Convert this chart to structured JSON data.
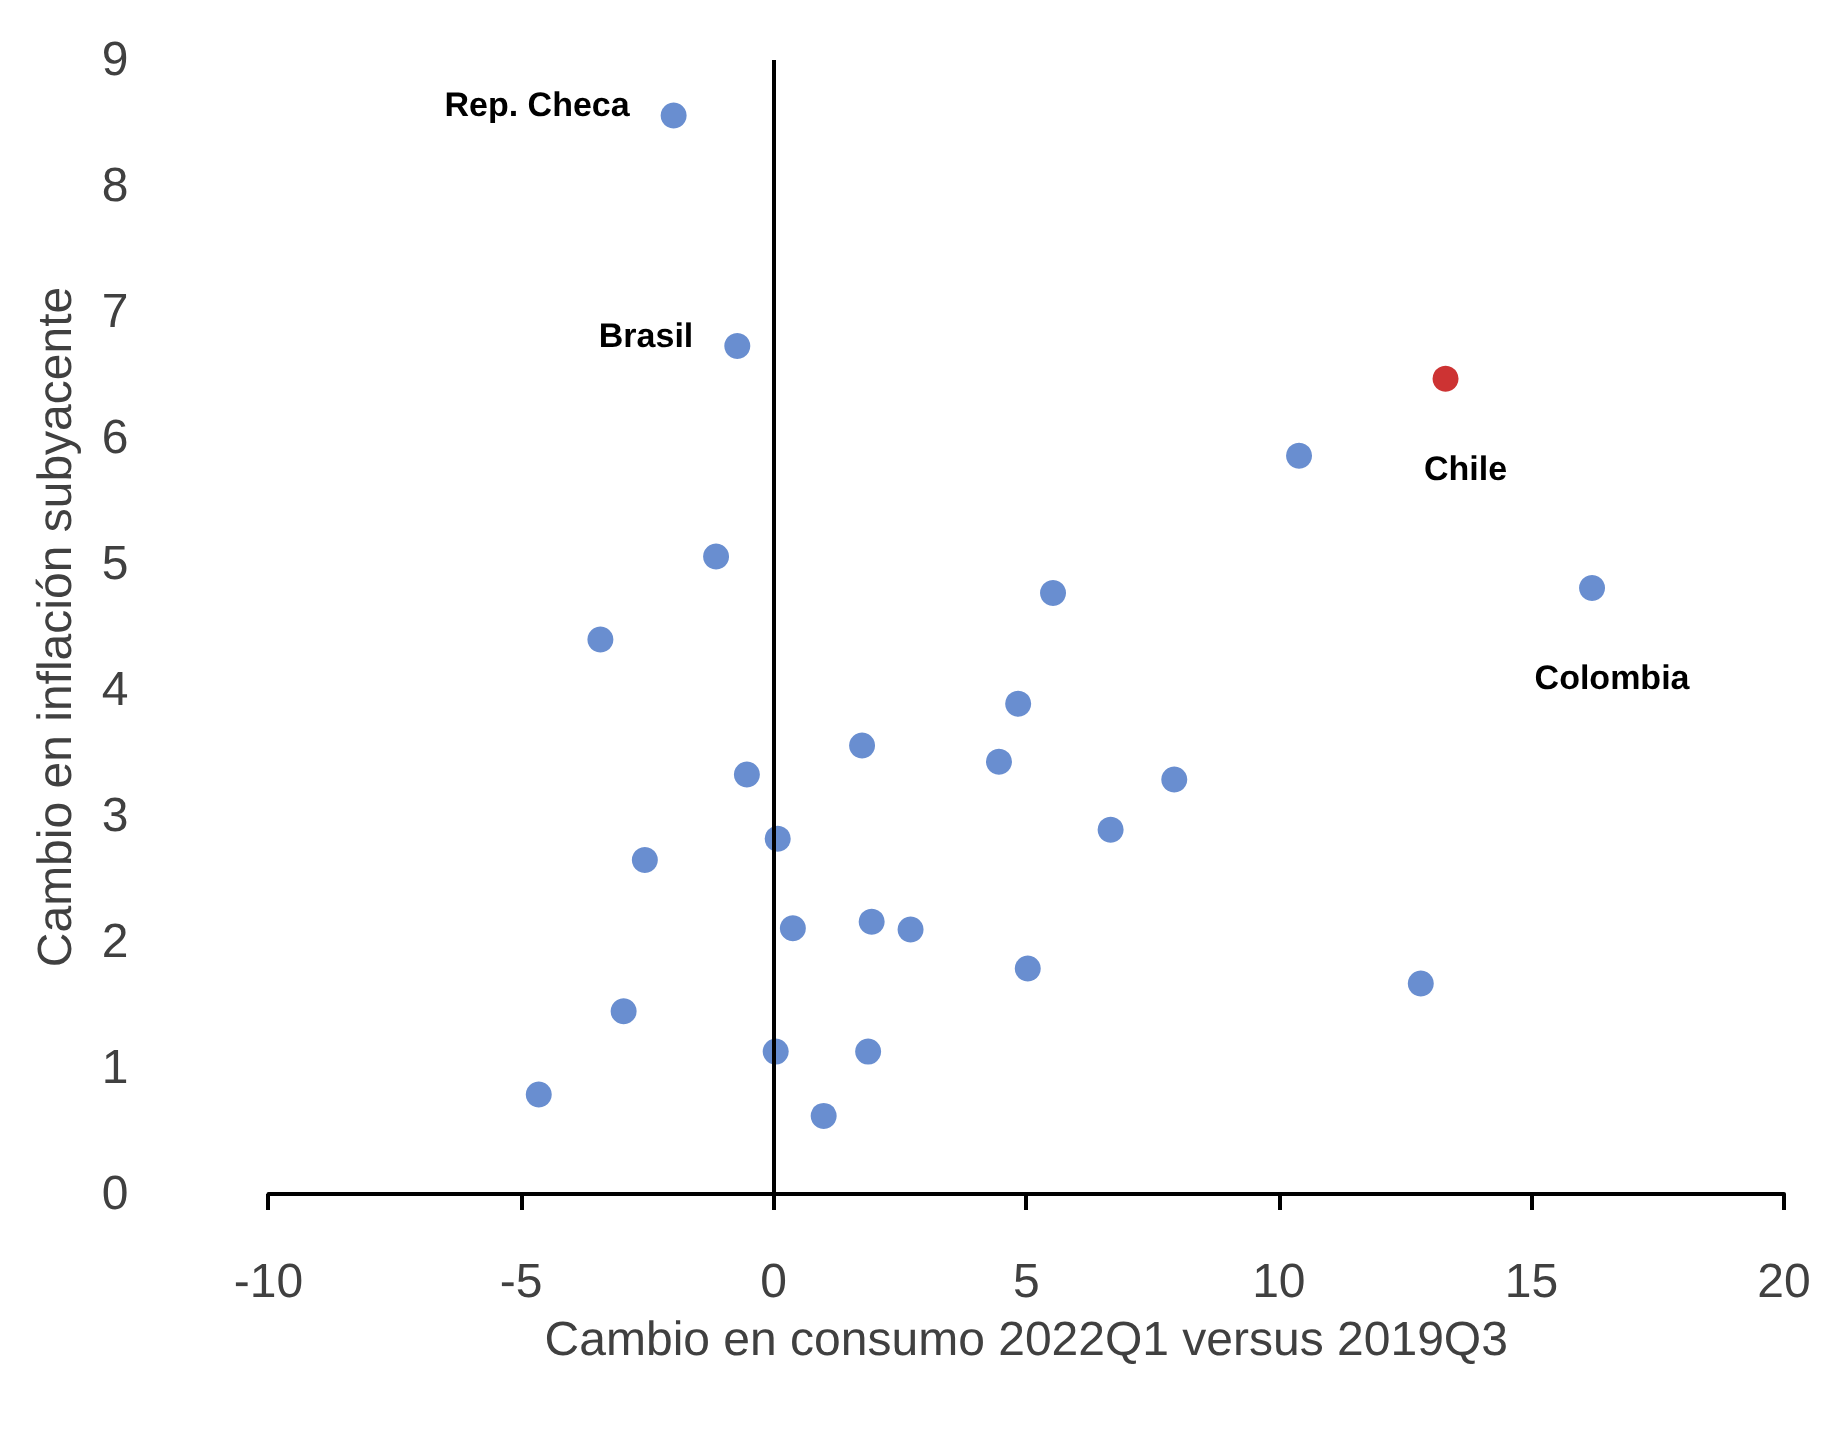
{
  "chart_data": {
    "type": "scatter",
    "xlabel": "Cambio en consumo 2022Q1 versus 2019Q3",
    "ylabel": "Cambio en inflación subyacente",
    "xlim": [
      -10,
      20
    ],
    "xticks": [
      -10,
      -5,
      0,
      5,
      10,
      15,
      20
    ],
    "ylim": [
      0,
      9
    ],
    "yticks": [
      0,
      1,
      2,
      3,
      4,
      5,
      6,
      7,
      8,
      9
    ],
    "series": [
      {
        "color": "#4472c4",
        "x": [
          -1.98,
          -0.72,
          10.4,
          16.2,
          5.53,
          -1.14,
          -3.43,
          4.84,
          1.75,
          4.46,
          -0.53,
          7.93,
          6.67,
          -2.55,
          0.08,
          0.38,
          1.94,
          2.71,
          5.03,
          12.81,
          -2.97,
          0.04,
          1.87,
          -4.65,
          0.99
        ],
        "values": [
          8.56,
          6.73,
          5.86,
          4.81,
          4.77,
          5.06,
          4.4,
          3.89,
          3.56,
          3.43,
          3.33,
          3.29,
          2.89,
          2.65,
          2.82,
          2.11,
          2.16,
          2.1,
          1.79,
          1.67,
          1.45,
          1.13,
          1.13,
          0.79,
          0.62
        ]
      },
      {
        "color": "#c00000",
        "x": [
          13.3
        ],
        "values": [
          6.47
        ]
      }
    ],
    "annotations": [
      {
        "text": "Rep. Checa",
        "x": -1.98,
        "y": 8.56
      },
      {
        "text": "Brasil",
        "x": -0.72,
        "y": 6.73
      },
      {
        "text": "Chile",
        "x": 13.3,
        "y": 6.47
      },
      {
        "text": "Colombia",
        "x": 16.2,
        "y": 4.81
      }
    ],
    "ref_lines": [
      {
        "axis": "x",
        "value": 0,
        "color": "#000000"
      }
    ],
    "grid": false,
    "marker": "circle"
  }
}
